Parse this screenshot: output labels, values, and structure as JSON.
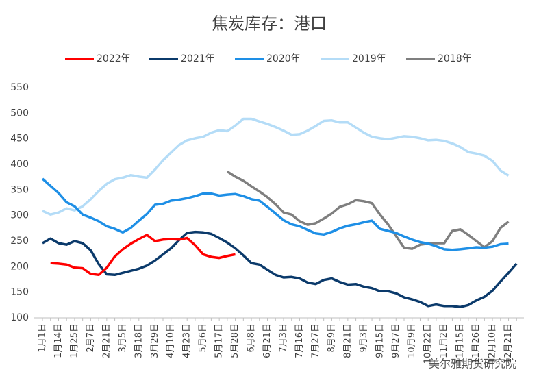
{
  "chart_data": {
    "type": "line",
    "title": "焦炭库存：港口",
    "annotations": [
      "美尔雅期货研究院"
    ],
    "categories": [
      "1月1日",
      null,
      "1月14日",
      null,
      "1月25日",
      null,
      "2月7日",
      null,
      "2月21日",
      null,
      "3月5日",
      null,
      "3月18日",
      null,
      "3月29日",
      null,
      "4月10日",
      null,
      "4月23日",
      null,
      "5月6日",
      null,
      "5月17日",
      null,
      "5月28日",
      null,
      "6月8日",
      null,
      "6月21日",
      null,
      "7月3日",
      null,
      "7月16日",
      null,
      "7月27日",
      null,
      "8月9日",
      null,
      "8月21日",
      null,
      "9月3日",
      null,
      "9月15日",
      null,
      "9月27日",
      null,
      "10月9日",
      null,
      "10月22日",
      null,
      "11月2日",
      null,
      "11月15日",
      null,
      "11月26日",
      null,
      "12月10日",
      null,
      "12月21日",
      null
    ],
    "series": [
      {
        "name": "2022年",
        "color": "#ff0000",
        "values": [
          null,
          207,
          206,
          204,
          198,
          197,
          186,
          184,
          198,
          220,
          234,
          245,
          254,
          262,
          250,
          253,
          254,
          253,
          256,
          242,
          224,
          219,
          217,
          221,
          224,
          null,
          null,
          null,
          null,
          null,
          null,
          null,
          null,
          null,
          null,
          null,
          null,
          null,
          null,
          null,
          null,
          null,
          null,
          null,
          null,
          null,
          null,
          null,
          null,
          null,
          null,
          null,
          null,
          null,
          null,
          null,
          null,
          null,
          null,
          null
        ]
      },
      {
        "name": "2021年",
        "color": "#0b3a6b",
        "values": [
          246,
          255,
          246,
          243,
          250,
          246,
          232,
          205,
          185,
          184,
          188,
          192,
          196,
          202,
          212,
          224,
          236,
          252,
          266,
          268,
          267,
          264,
          256,
          247,
          236,
          222,
          207,
          204,
          194,
          184,
          179,
          180,
          177,
          169,
          166,
          174,
          177,
          170,
          165,
          166,
          161,
          158,
          152,
          152,
          148,
          140,
          136,
          131,
          123,
          126,
          123,
          123,
          121,
          125,
          134,
          141,
          153,
          171,
          188,
          206
        ]
      },
      {
        "name": "2020年",
        "color": "#1e8fe6",
        "values": [
          372,
          358,
          344,
          326,
          318,
          302,
          296,
          289,
          279,
          274,
          267,
          276,
          290,
          303,
          321,
          323,
          329,
          331,
          334,
          338,
          343,
          343,
          339,
          341,
          342,
          338,
          332,
          329,
          317,
          304,
          291,
          283,
          279,
          272,
          265,
          263,
          268,
          275,
          280,
          283,
          287,
          290,
          274,
          270,
          266,
          259,
          253,
          248,
          245,
          240,
          234,
          233,
          234,
          236,
          238,
          237,
          239,
          244,
          245,
          null
        ]
      },
      {
        "name": "2019年",
        "color": "#b4dcf7",
        "values": [
          309,
          302,
          306,
          314,
          310,
          318,
          332,
          348,
          362,
          371,
          374,
          379,
          376,
          374,
          390,
          408,
          423,
          438,
          447,
          451,
          454,
          462,
          467,
          465,
          476,
          489,
          489,
          484,
          479,
          473,
          466,
          458,
          459,
          466,
          475,
          485,
          486,
          482,
          482,
          472,
          462,
          454,
          451,
          449,
          452,
          455,
          454,
          451,
          447,
          448,
          446,
          441,
          434,
          424,
          421,
          417,
          407,
          388,
          378,
          null
        ]
      },
      {
        "name": "2018年",
        "color": "#7f7f7f",
        "values": [
          null,
          null,
          null,
          null,
          null,
          null,
          null,
          null,
          null,
          null,
          null,
          null,
          null,
          null,
          null,
          null,
          null,
          null,
          null,
          null,
          null,
          null,
          null,
          386,
          376,
          368,
          357,
          347,
          336,
          322,
          306,
          302,
          289,
          282,
          285,
          294,
          304,
          317,
          322,
          330,
          328,
          324,
          302,
          283,
          260,
          237,
          235,
          243,
          245,
          246,
          246,
          270,
          273,
          262,
          250,
          238,
          250,
          276,
          288,
          null
        ]
      }
    ],
    "ylim": [
      100,
      550
    ],
    "yticks": [
      100,
      150,
      200,
      250,
      300,
      350,
      400,
      450,
      500,
      550
    ],
    "grid": false,
    "legend": "top"
  }
}
